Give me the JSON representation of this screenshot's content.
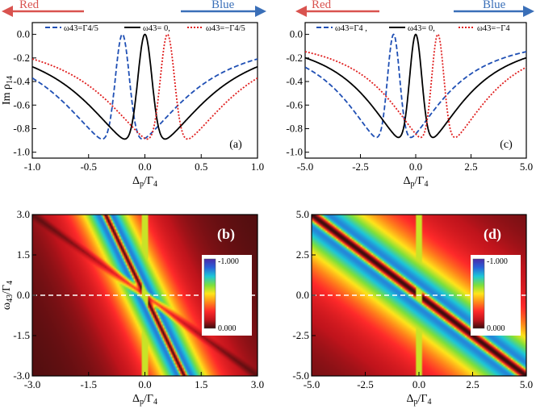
{
  "figure": {
    "arrows": {
      "red_label": "Red",
      "blue_label": "Blue",
      "red_color": "#d9534f",
      "blue_color": "#3a6fb8"
    }
  },
  "chart_data": [
    {
      "type": "line",
      "panel": "(a)",
      "xlabel": "Δp/Γ4",
      "ylabel": "Im ρ14",
      "xlim": [
        -1.0,
        1.0
      ],
      "ylim": [
        -1.05,
        0.1
      ],
      "xticks": [
        "-1.0",
        "-0.5",
        "0.0",
        "0.5",
        "1.0"
      ],
      "yticks": [
        "0.0",
        "-0.2",
        "-0.4",
        "-0.6",
        "-0.8",
        "-1.0"
      ],
      "ytick_values": [
        0.0,
        -0.2,
        -0.4,
        -0.6,
        -0.8,
        -1.0
      ],
      "xtick_values": [
        -1.0,
        -0.5,
        0.0,
        0.5,
        1.0
      ],
      "legend": [
        "ω43=Γ4/5",
        "ω43= 0,",
        "ω43=−Γ4/5"
      ],
      "series": [
        {
          "name": "ω43=Γ4/5",
          "color": "#1f4fb4",
          "style": "dashed",
          "shift": -0.2
        },
        {
          "name": "ω43= 0",
          "color": "#000000",
          "style": "solid",
          "shift": 0.0
        },
        {
          "name": "ω43=−Γ4/5",
          "color": "#e02020",
          "style": "dotted",
          "shift": 0.2
        }
      ],
      "model": {
        "eit_width": 0.09,
        "peak_sep": 0.26,
        "peak_width": 0.5
      }
    },
    {
      "type": "line",
      "panel": "(c)",
      "xlabel": "Δp/Γ4",
      "ylabel": "",
      "xlim": [
        -5.0,
        5.0
      ],
      "ylim": [
        -1.05,
        0.1
      ],
      "xticks": [
        "-5.0",
        "-2.5",
        "0.0",
        "2.5",
        "5.0"
      ],
      "yticks": [
        "0.0",
        "-0.2",
        "-0.4",
        "-0.6",
        "-0.8",
        "-1.0"
      ],
      "ytick_values": [
        0.0,
        -0.2,
        -0.4,
        -0.6,
        -0.8,
        -1.0
      ],
      "xtick_values": [
        -5.0,
        -2.5,
        0.0,
        2.5,
        5.0
      ],
      "legend": [
        "ω43=Γ4 ,",
        "ω43= 0,",
        "ω43=−Γ4"
      ],
      "series": [
        {
          "name": "ω43=Γ4",
          "color": "#1f4fb4",
          "style": "dashed",
          "shift": -1.0
        },
        {
          "name": "ω43= 0",
          "color": "#000000",
          "style": "solid",
          "shift": 0.0
        },
        {
          "name": "ω43=−Γ4",
          "color": "#e02020",
          "style": "dotted",
          "shift": 1.0
        }
      ],
      "model": {
        "eit_width": 0.4,
        "peak_sep": 1.05,
        "peak_width": 0.65
      }
    },
    {
      "type": "heatmap",
      "panel": "(b)",
      "xlabel": "Δp/Γ4",
      "ylabel": "ω43/Γ4",
      "xlim": [
        -3.0,
        3.0
      ],
      "ylim": [
        -3.0,
        3.0
      ],
      "xticks": [
        "-3.0",
        "-1.5",
        "0.0",
        "1.5",
        "3.0"
      ],
      "yticks": [
        "3.0",
        "1.5",
        "0.0",
        "-1.5",
        "-3.0"
      ],
      "xtick_values": [
        -3.0,
        -1.5,
        0.0,
        1.5,
        3.0
      ],
      "ytick_values": [
        3.0,
        1.5,
        0.0,
        -1.5,
        -3.0
      ],
      "colorbar": {
        "top": "-1.000",
        "bottom": "0.000"
      }
    },
    {
      "type": "heatmap",
      "panel": "(d)",
      "xlabel": "Δp/Γ4",
      "ylabel": "",
      "xlim": [
        -5.0,
        5.0
      ],
      "ylim": [
        -5.0,
        5.0
      ],
      "xticks": [
        "-5.0",
        "-2.5",
        "0.0",
        "2.5",
        "5.0"
      ],
      "yticks": [
        "5.0",
        "2.5",
        "0.0",
        "-2.5",
        "-5.0"
      ],
      "xtick_values": [
        -5.0,
        -2.5,
        0.0,
        2.5,
        5.0
      ],
      "ytick_values": [
        5.0,
        2.5,
        0.0,
        -2.5,
        -5.0
      ],
      "colorbar": {
        "top": "-1.000",
        "bottom": "0.000"
      }
    }
  ]
}
